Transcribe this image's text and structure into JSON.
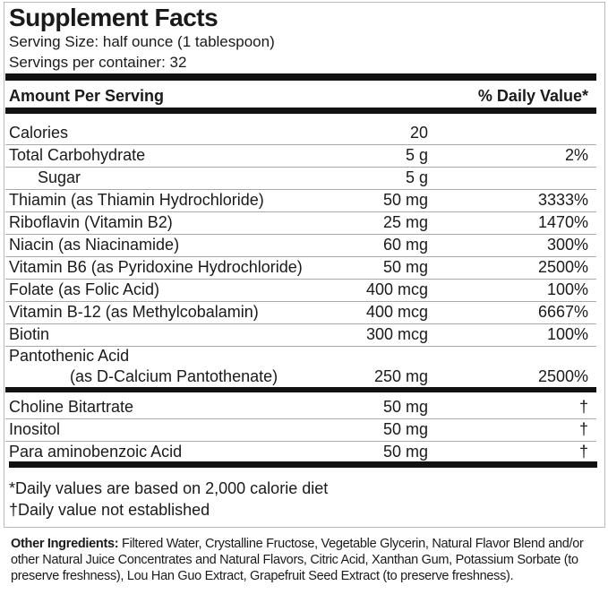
{
  "title": "Supplement Facts",
  "serving_size": "Serving Size: half ounce (1 tablespoon)",
  "servings_per_container": "Servings per container: 32",
  "header": {
    "amount": "Amount Per Serving",
    "dv": "% Daily Value*"
  },
  "rows": [
    {
      "name": "Calories",
      "amount": "20",
      "dv": ""
    },
    {
      "name": "Total Carbohydrate",
      "amount": "5 g",
      "dv": "2%"
    },
    {
      "name": "Sugar",
      "amount": "5 g",
      "dv": ""
    },
    {
      "name": "Thiamin (as Thiamin Hydrochloride)",
      "amount": "50 mg",
      "dv": "3333%"
    },
    {
      "name": "Riboflavin (Vitamin B2)",
      "amount": "25 mg",
      "dv": "1470%"
    },
    {
      "name": "Niacin (as Niacinamide)",
      "amount": "60 mg",
      "dv": "300%"
    },
    {
      "name": "Vitamin B6 (as Pyridoxine Hydrochloride)",
      "amount": "50 mg",
      "dv": "2500%"
    },
    {
      "name": "Folate (as Folic Acid)",
      "amount": "400 mcg",
      "dv": "100%"
    },
    {
      "name": "Vitamin B-12 (as Methylcobalamin)",
      "amount": "400 mcg",
      "dv": "6667%"
    },
    {
      "name": "Biotin",
      "amount": "300 mcg",
      "dv": "100%"
    }
  ],
  "pantothenic": {
    "name": "Pantothenic Acid",
    "name2": "(as D-Calcium Pantothenate)",
    "amount": "250 mg",
    "dv": "2500%"
  },
  "rows2": [
    {
      "name": "Choline Bitartrate",
      "amount": "50 mg",
      "dv": "†"
    },
    {
      "name": "Inositol",
      "amount": "50 mg",
      "dv": "†"
    },
    {
      "name": "Para aminobenzoic Acid",
      "amount": "50 mg",
      "dv": "†"
    }
  ],
  "footnotes": [
    "*Daily values are based on 2,000 calorie diet",
    "†Daily value not established"
  ],
  "other": {
    "label": "Other Ingredients:",
    "text": " Filtered Water, Crystalline Fructose, Vegetable Glycerin, Natural Flavor Blend and/or other Natural Juice Concentrates and Natural Flavors, Citric Acid, Xanthan Gum, Potassium Sorbate (to preserve freshness), Lou Han Guo Extract, Grapefruit Seed Extract (to preserve freshness)."
  }
}
